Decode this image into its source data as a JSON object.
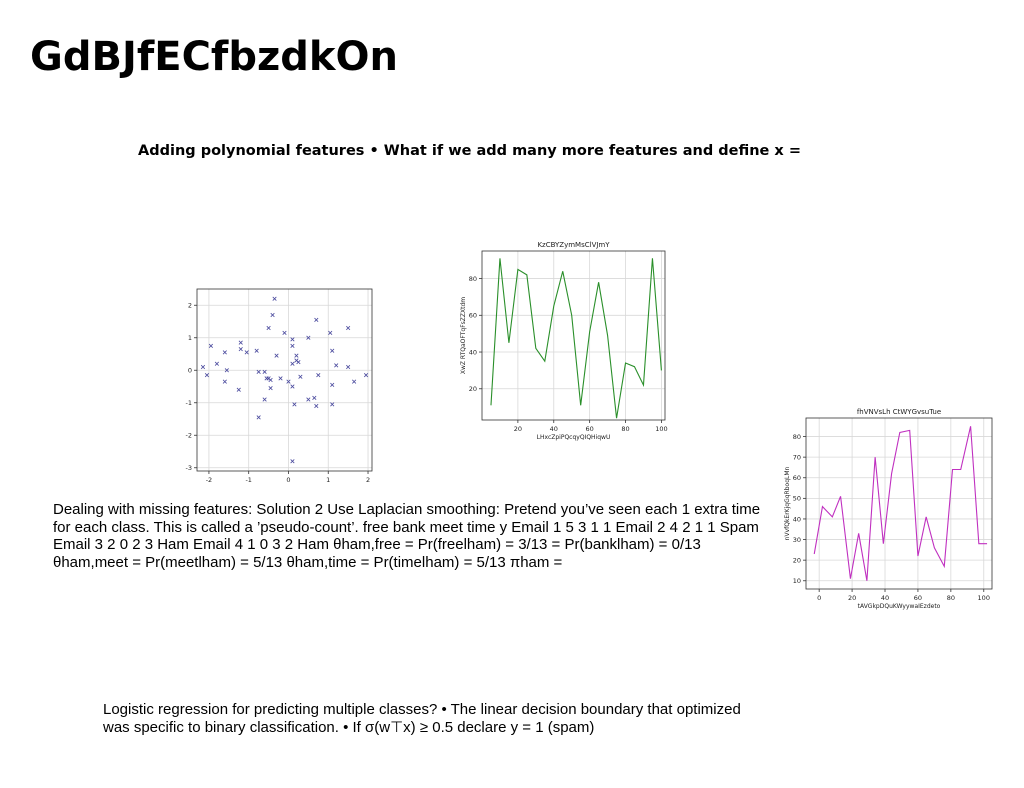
{
  "slide": {
    "title": "GdBJfECfbzdkOn",
    "subtitle": "Adding polynomial features • What if we add many more features and define x =",
    "paragraph1": "Dealing with missing features: Solution 2 Use Laplacian smoothing: Pretend you’ve seen each 1 extra time for each class. This is called a ’pseudo-count’. free bank meet time y Email 1 5 3 1 1 Email 2 4 2 1 1 Spam Email 3 2 0 2 3 Ham Email 4 1 0 3 2 Ham θham,free = Pr(freelham) = 3/13 = Pr(banklham) = 0/13 θham,meet = Pr(meetlham) = 5/13 θham,time = Pr(timelham) = 5/13 πham =",
    "paragraph2": "Logistic regression for predicting multiple classes? • The linear decision boundary that optimized was specific to binary classification. • If σ(w⊤x) ≥ 0.5 declare y = 1 (spam)"
  },
  "colors": {
    "scatter": "#4b4b9e",
    "line1": "#2a8f2a",
    "line2": "#c030c0",
    "grid": "#d8d8d8"
  },
  "chart_data": [
    {
      "type": "scatter",
      "title": "",
      "xlabel": "",
      "ylabel": "",
      "xlim": [
        -2.3,
        2.1
      ],
      "ylim": [
        -3.1,
        2.5
      ],
      "xticks": [
        -2,
        -1,
        0,
        1,
        2
      ],
      "yticks": [
        -3,
        -2,
        -1,
        0,
        1,
        2
      ],
      "grid": true,
      "marker": "x",
      "points": [
        [
          -0.35,
          2.2
        ],
        [
          -0.4,
          1.7
        ],
        [
          -0.5,
          1.3
        ],
        [
          0.7,
          1.55
        ],
        [
          1.5,
          1.3
        ],
        [
          -0.1,
          1.15
        ],
        [
          0.1,
          0.95
        ],
        [
          0.5,
          1.0
        ],
        [
          1.05,
          1.15
        ],
        [
          -1.95,
          0.75
        ],
        [
          -1.6,
          0.55
        ],
        [
          -1.2,
          0.85
        ],
        [
          -1.2,
          0.65
        ],
        [
          -1.05,
          0.55
        ],
        [
          -0.8,
          0.6
        ],
        [
          -0.3,
          0.45
        ],
        [
          0.1,
          0.75
        ],
        [
          0.2,
          0.45
        ],
        [
          0.2,
          0.3
        ],
        [
          0.25,
          0.25
        ],
        [
          1.1,
          0.6
        ],
        [
          -2.15,
          0.1
        ],
        [
          -2.05,
          -0.15
        ],
        [
          -1.8,
          0.2
        ],
        [
          -1.55,
          0.0
        ],
        [
          -1.6,
          -0.35
        ],
        [
          -0.75,
          -0.05
        ],
        [
          -0.6,
          -0.05
        ],
        [
          -0.55,
          -0.25
        ],
        [
          -0.5,
          -0.25
        ],
        [
          -0.45,
          -0.3
        ],
        [
          -0.2,
          -0.25
        ],
        [
          0.0,
          -0.35
        ],
        [
          0.1,
          0.2
        ],
        [
          0.3,
          -0.2
        ],
        [
          0.1,
          -0.5
        ],
        [
          -0.45,
          -0.55
        ],
        [
          0.75,
          -0.15
        ],
        [
          1.2,
          0.15
        ],
        [
          1.5,
          0.1
        ],
        [
          1.65,
          -0.35
        ],
        [
          1.95,
          -0.15
        ],
        [
          -1.25,
          -0.6
        ],
        [
          -0.6,
          -0.9
        ],
        [
          -0.75,
          -1.45
        ],
        [
          0.5,
          -0.9
        ],
        [
          0.65,
          -0.85
        ],
        [
          0.15,
          -1.05
        ],
        [
          0.7,
          -1.1
        ],
        [
          1.1,
          -1.05
        ],
        [
          1.1,
          -0.45
        ],
        [
          0.1,
          -2.8
        ]
      ]
    },
    {
      "type": "line",
      "title": "KzCBYZymMsClVJmY",
      "xlabel": "LHxcZpiPQcqyQIQHiqwU",
      "ylabel": "XwZ RTQaOFTqFsZZXtdm",
      "xlim": [
        0,
        102
      ],
      "ylim": [
        3,
        95
      ],
      "xticks": [
        20,
        40,
        60,
        80,
        100
      ],
      "yticks": [
        20,
        40,
        60,
        80
      ],
      "grid": true,
      "x": [
        5,
        10,
        15,
        20,
        25,
        30,
        35,
        40,
        45,
        50,
        55,
        60,
        65,
        70,
        75,
        80,
        85,
        90,
        95,
        100
      ],
      "y": [
        11,
        91,
        45,
        85,
        82,
        42,
        35,
        65,
        84,
        60,
        11,
        51,
        78,
        49,
        4,
        34,
        32,
        22,
        91,
        30
      ]
    },
    {
      "type": "line",
      "title": "fhVNVsLh CtWYGvsuTue",
      "xlabel": "tAVGkpDQuKWyywaIEzdeto",
      "ylabel": "nVvfQkErKjqGqRboqLMn",
      "xlim": [
        -8,
        105
      ],
      "ylim": [
        6,
        89
      ],
      "xticks": [
        0,
        20,
        40,
        60,
        80,
        100
      ],
      "yticks": [
        10,
        20,
        30,
        40,
        50,
        60,
        70,
        80
      ],
      "grid": true,
      "x": [
        -3,
        2,
        8,
        13,
        19,
        24,
        29,
        34,
        39,
        44,
        49,
        55,
        60,
        65,
        70,
        76,
        81,
        86,
        92,
        97,
        102
      ],
      "y": [
        23,
        46,
        41,
        51,
        11,
        33,
        10,
        70,
        28,
        62,
        82,
        83,
        22,
        41,
        26,
        17,
        64,
        64,
        85,
        28,
        28
      ]
    }
  ]
}
